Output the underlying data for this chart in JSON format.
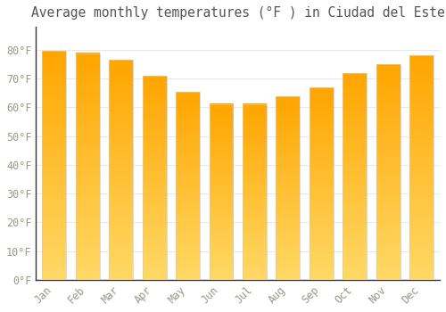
{
  "title": "Average monthly temperatures (°F ) in Ciudad del Este",
  "months": [
    "Jan",
    "Feb",
    "Mar",
    "Apr",
    "May",
    "Jun",
    "Jul",
    "Aug",
    "Sep",
    "Oct",
    "Nov",
    "Dec"
  ],
  "values": [
    79.5,
    78.8,
    76.5,
    71.0,
    65.3,
    61.2,
    61.2,
    63.7,
    66.9,
    71.8,
    75.0,
    78.0
  ],
  "bar_color": "#FFA500",
  "bar_color_light": "#FFD966",
  "ylim": [
    0,
    88
  ],
  "ytick_values": [
    0,
    10,
    20,
    30,
    40,
    50,
    60,
    70,
    80
  ],
  "background_color": "#FFFFFF",
  "grid_color": "#E8E8E8",
  "title_fontsize": 10.5,
  "tick_fontsize": 8.5,
  "font_color": "#999988",
  "title_color": "#555555"
}
